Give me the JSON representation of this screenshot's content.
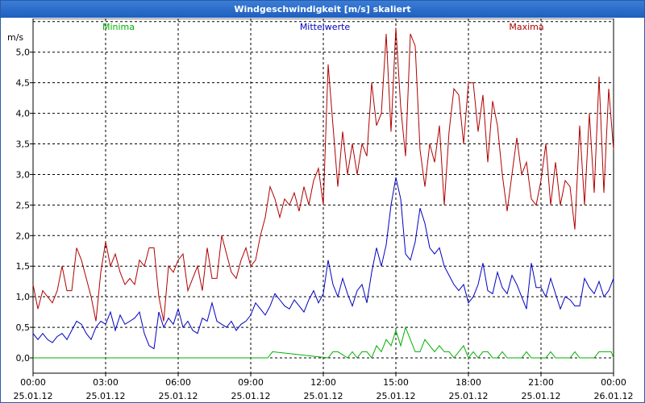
{
  "window": {
    "title": "Windgeschwindigkeit [m/s] skaliert"
  },
  "chart_data": {
    "type": "line",
    "title": "Windgeschwindigkeit [m/s] skaliert",
    "ylabel": "m/s",
    "xlabel": "",
    "ylim": [
      -0.25,
      5.55
    ],
    "grid": true,
    "yticks": [
      0.0,
      0.5,
      1.0,
      1.5,
      2.0,
      2.5,
      3.0,
      3.5,
      4.0,
      4.5,
      5.0
    ],
    "ytick_labels": [
      "0,0",
      "0,5",
      "1,0",
      "1,5",
      "2,0",
      "2,5",
      "3,0",
      "3,5",
      "4,0",
      "4,5",
      "5,0"
    ],
    "x_range_hours": [
      0,
      24
    ],
    "xticks": [
      {
        "time": "00:00",
        "date": "25.01.12",
        "hour": 0
      },
      {
        "time": "03:00",
        "date": "25.01.12",
        "hour": 3
      },
      {
        "time": "06:00",
        "date": "25.01.12",
        "hour": 6
      },
      {
        "time": "09:00",
        "date": "25.01.12",
        "hour": 9
      },
      {
        "time": "12:00",
        "date": "25.01.12",
        "hour": 12
      },
      {
        "time": "15:00",
        "date": "25.01.12",
        "hour": 15
      },
      {
        "time": "18:00",
        "date": "25.01.12",
        "hour": 18
      },
      {
        "time": "21:00",
        "date": "25.01.12",
        "hour": 21
      },
      {
        "time": "00:00",
        "date": "26.01.12",
        "hour": 24
      }
    ],
    "series": [
      {
        "name": "Minima",
        "color": "#00b000",
        "legend_position": "top-left",
        "x": [
          0,
          9.7,
          9.9,
          12.2,
          12.4,
          12.6,
          13.0,
          13.2,
          13.4,
          13.6,
          13.8,
          14.0,
          14.2,
          14.4,
          14.6,
          14.8,
          15.0,
          15.2,
          15.4,
          15.6,
          15.8,
          16.0,
          16.2,
          16.4,
          16.6,
          16.8,
          17.0,
          17.2,
          17.4,
          17.6,
          17.8,
          18.0,
          18.2,
          18.4,
          18.6,
          18.8,
          19.0,
          19.2,
          19.4,
          19.6,
          20.2,
          20.4,
          20.6,
          21.2,
          21.4,
          21.6,
          22.2,
          22.4,
          22.6,
          23.2,
          23.4,
          23.6,
          23.9,
          24.0
        ],
        "values": [
          0.0,
          0.0,
          0.1,
          0.0,
          0.1,
          0.1,
          0.0,
          0.1,
          0.0,
          0.1,
          0.1,
          0.0,
          0.2,
          0.1,
          0.3,
          0.2,
          0.45,
          0.2,
          0.5,
          0.3,
          0.1,
          0.1,
          0.3,
          0.2,
          0.1,
          0.2,
          0.1,
          0.1,
          0.0,
          0.1,
          0.2,
          0.0,
          0.1,
          0.0,
          0.1,
          0.1,
          0.0,
          0.0,
          0.1,
          0.0,
          0.0,
          0.1,
          0.0,
          0.0,
          0.1,
          0.0,
          0.0,
          0.1,
          0.0,
          0.0,
          0.1,
          0.1,
          0.1,
          0.0
        ]
      },
      {
        "name": "Mittelwerte",
        "color": "#0000c0",
        "legend_position": "top-center",
        "x": [
          0.0,
          0.2,
          0.4,
          0.6,
          0.8,
          1.0,
          1.2,
          1.4,
          1.6,
          1.8,
          2.0,
          2.2,
          2.4,
          2.6,
          2.8,
          3.0,
          3.2,
          3.4,
          3.6,
          3.8,
          4.0,
          4.2,
          4.4,
          4.6,
          4.8,
          5.0,
          5.2,
          5.4,
          5.6,
          5.8,
          6.0,
          6.2,
          6.4,
          6.6,
          6.8,
          7.0,
          7.2,
          7.4,
          7.6,
          7.8,
          8.0,
          8.2,
          8.4,
          8.6,
          8.8,
          9.0,
          9.2,
          9.4,
          9.6,
          9.8,
          10.0,
          10.2,
          10.4,
          10.6,
          10.8,
          11.0,
          11.2,
          11.4,
          11.6,
          11.8,
          12.0,
          12.2,
          12.4,
          12.6,
          12.8,
          13.0,
          13.2,
          13.4,
          13.6,
          13.8,
          14.0,
          14.2,
          14.4,
          14.6,
          14.8,
          15.0,
          15.2,
          15.4,
          15.6,
          15.8,
          16.0,
          16.2,
          16.4,
          16.6,
          16.8,
          17.0,
          17.2,
          17.4,
          17.6,
          17.8,
          18.0,
          18.2,
          18.4,
          18.6,
          18.8,
          19.0,
          19.2,
          19.4,
          19.6,
          19.8,
          20.0,
          20.2,
          20.4,
          20.6,
          20.8,
          21.0,
          21.2,
          21.4,
          21.6,
          21.8,
          22.0,
          22.2,
          22.4,
          22.6,
          22.8,
          23.0,
          23.2,
          23.4,
          23.6,
          23.8,
          24.0
        ],
        "values": [
          0.4,
          0.3,
          0.4,
          0.3,
          0.25,
          0.35,
          0.4,
          0.3,
          0.45,
          0.6,
          0.55,
          0.4,
          0.3,
          0.5,
          0.6,
          0.55,
          0.75,
          0.45,
          0.7,
          0.55,
          0.6,
          0.65,
          0.75,
          0.4,
          0.2,
          0.15,
          0.75,
          0.5,
          0.65,
          0.55,
          0.8,
          0.5,
          0.6,
          0.45,
          0.4,
          0.65,
          0.6,
          0.9,
          0.6,
          0.55,
          0.5,
          0.6,
          0.45,
          0.55,
          0.6,
          0.7,
          0.9,
          0.8,
          0.7,
          0.85,
          1.05,
          0.95,
          0.85,
          0.8,
          0.95,
          0.85,
          0.75,
          0.95,
          1.1,
          0.9,
          1.05,
          1.6,
          1.2,
          1.0,
          1.3,
          1.05,
          0.85,
          1.1,
          1.2,
          0.9,
          1.4,
          1.8,
          1.5,
          1.85,
          2.5,
          2.95,
          2.6,
          1.7,
          1.6,
          1.9,
          2.45,
          2.2,
          1.8,
          1.7,
          1.8,
          1.5,
          1.35,
          1.2,
          1.1,
          1.2,
          0.9,
          1.0,
          1.2,
          1.55,
          1.1,
          1.05,
          1.4,
          1.15,
          1.05,
          1.35,
          1.2,
          1.0,
          0.8,
          1.55,
          1.15,
          1.15,
          1.0,
          1.3,
          1.05,
          0.8,
          1.0,
          0.95,
          0.85,
          0.85,
          1.3,
          1.15,
          1.05,
          1.25,
          1.0,
          1.1,
          1.3
        ]
      },
      {
        "name": "Maxima",
        "color": "#b00000",
        "legend_position": "top-right",
        "x": [
          0.0,
          0.2,
          0.4,
          0.6,
          0.8,
          1.0,
          1.2,
          1.4,
          1.6,
          1.8,
          2.0,
          2.2,
          2.4,
          2.6,
          2.8,
          3.0,
          3.2,
          3.4,
          3.6,
          3.8,
          4.0,
          4.2,
          4.4,
          4.6,
          4.8,
          5.0,
          5.2,
          5.4,
          5.6,
          5.8,
          6.0,
          6.2,
          6.4,
          6.6,
          6.8,
          7.0,
          7.2,
          7.4,
          7.6,
          7.8,
          8.0,
          8.2,
          8.4,
          8.6,
          8.8,
          9.0,
          9.2,
          9.4,
          9.6,
          9.8,
          10.0,
          10.2,
          10.4,
          10.6,
          10.8,
          11.0,
          11.2,
          11.4,
          11.6,
          11.8,
          12.0,
          12.2,
          12.4,
          12.6,
          12.8,
          13.0,
          13.2,
          13.4,
          13.6,
          13.8,
          14.0,
          14.2,
          14.4,
          14.6,
          14.8,
          15.0,
          15.2,
          15.4,
          15.6,
          15.8,
          16.0,
          16.2,
          16.4,
          16.6,
          16.8,
          17.0,
          17.2,
          17.4,
          17.6,
          17.8,
          18.0,
          18.2,
          18.4,
          18.6,
          18.8,
          19.0,
          19.2,
          19.4,
          19.6,
          19.8,
          20.0,
          20.2,
          20.4,
          20.6,
          20.8,
          21.0,
          21.2,
          21.4,
          21.6,
          21.8,
          22.0,
          22.2,
          22.4,
          22.6,
          22.8,
          23.0,
          23.2,
          23.4,
          23.6,
          23.8,
          24.0
        ],
        "values": [
          1.2,
          0.8,
          1.1,
          1.0,
          0.9,
          1.1,
          1.5,
          1.1,
          1.1,
          1.8,
          1.6,
          1.3,
          1.0,
          0.6,
          1.4,
          1.9,
          1.5,
          1.7,
          1.4,
          1.2,
          1.3,
          1.2,
          1.6,
          1.5,
          1.8,
          1.8,
          1.0,
          0.6,
          1.5,
          1.4,
          1.6,
          1.7,
          1.1,
          1.3,
          1.5,
          1.1,
          1.8,
          1.3,
          1.3,
          2.0,
          1.7,
          1.4,
          1.3,
          1.6,
          1.8,
          1.5,
          1.6,
          2.0,
          2.3,
          2.8,
          2.6,
          2.3,
          2.6,
          2.5,
          2.7,
          2.4,
          2.8,
          2.5,
          2.9,
          3.1,
          2.5,
          4.8,
          3.8,
          2.8,
          3.7,
          3.0,
          3.5,
          3.0,
          3.5,
          3.3,
          4.5,
          3.8,
          4.0,
          5.3,
          3.7,
          5.4,
          4.1,
          3.3,
          5.3,
          5.1,
          3.4,
          2.8,
          3.5,
          3.2,
          3.8,
          2.5,
          3.7,
          4.4,
          4.3,
          3.5,
          4.5,
          4.5,
          3.7,
          4.3,
          3.2,
          4.2,
          3.8,
          3.0,
          2.4,
          3.0,
          3.6,
          3.0,
          3.2,
          2.6,
          2.5,
          2.9,
          3.5,
          2.5,
          3.2,
          2.5,
          2.9,
          2.8,
          2.1,
          3.8,
          2.5,
          4.0,
          2.7,
          4.6,
          2.7,
          4.4,
          3.4
        ]
      }
    ]
  }
}
